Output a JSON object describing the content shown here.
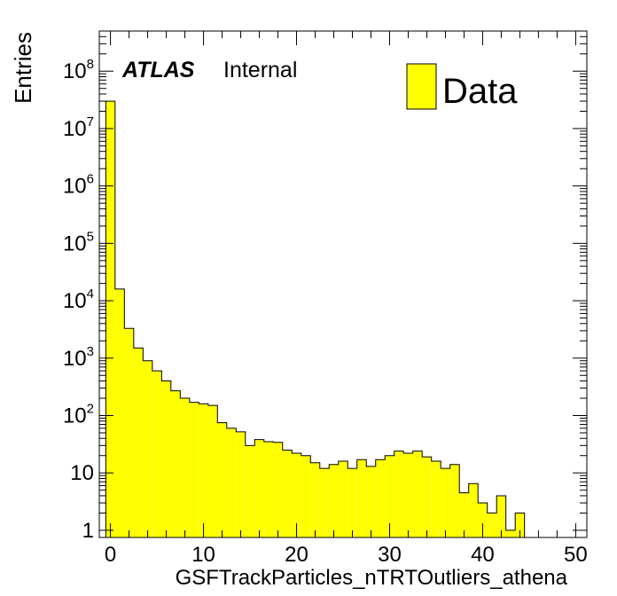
{
  "chart_data": {
    "type": "bar",
    "style": "histogram-step",
    "title": "",
    "xlabel": "GSFTrackParticles_nTRTOutliers_athena",
    "ylabel": "Entries",
    "xlim": [
      -1.2,
      51.2
    ],
    "ylim": [
      0.75,
      500000000
    ],
    "ylog": true,
    "grid": false,
    "legend_position": "top-right",
    "fill_color": "#ffff00",
    "line_color": "#000000",
    "x_ticks": [
      {
        "value": 0,
        "label": "0"
      },
      {
        "value": 10,
        "label": "10"
      },
      {
        "value": 20,
        "label": "20"
      },
      {
        "value": 30,
        "label": "30"
      },
      {
        "value": 40,
        "label": "40"
      },
      {
        "value": 50,
        "label": "50"
      }
    ],
    "y_ticks": [
      {
        "value": 1,
        "base": "1",
        "exp": ""
      },
      {
        "value": 10,
        "base": "10",
        "exp": ""
      },
      {
        "value": 100,
        "base": "10",
        "exp": "2"
      },
      {
        "value": 1000,
        "base": "10",
        "exp": "3"
      },
      {
        "value": 10000,
        "base": "10",
        "exp": "4"
      },
      {
        "value": 100000,
        "base": "10",
        "exp": "5"
      },
      {
        "value": 1000000,
        "base": "10",
        "exp": "6"
      },
      {
        "value": 10000000,
        "base": "10",
        "exp": "7"
      },
      {
        "value": 100000000,
        "base": "10",
        "exp": "8"
      }
    ],
    "bin_width": 1,
    "bin_start": -0.5,
    "values": [
      30000000.0,
      16000,
      3300,
      1500,
      900,
      600,
      400,
      270,
      200,
      170,
      160,
      150,
      75,
      60,
      52,
      30,
      38,
      35,
      34,
      25,
      22,
      20,
      15,
      12,
      14,
      16,
      12,
      17,
      13,
      17,
      20,
      24,
      22,
      24,
      19,
      16,
      12,
      14,
      4.5,
      6.5,
      3,
      2,
      4,
      1,
      2,
      0,
      0,
      0,
      0,
      0,
      0
    ],
    "series": [
      {
        "name": "Data"
      }
    ],
    "annotations": {
      "experiment": "ATLAS",
      "status": "Internal"
    }
  }
}
